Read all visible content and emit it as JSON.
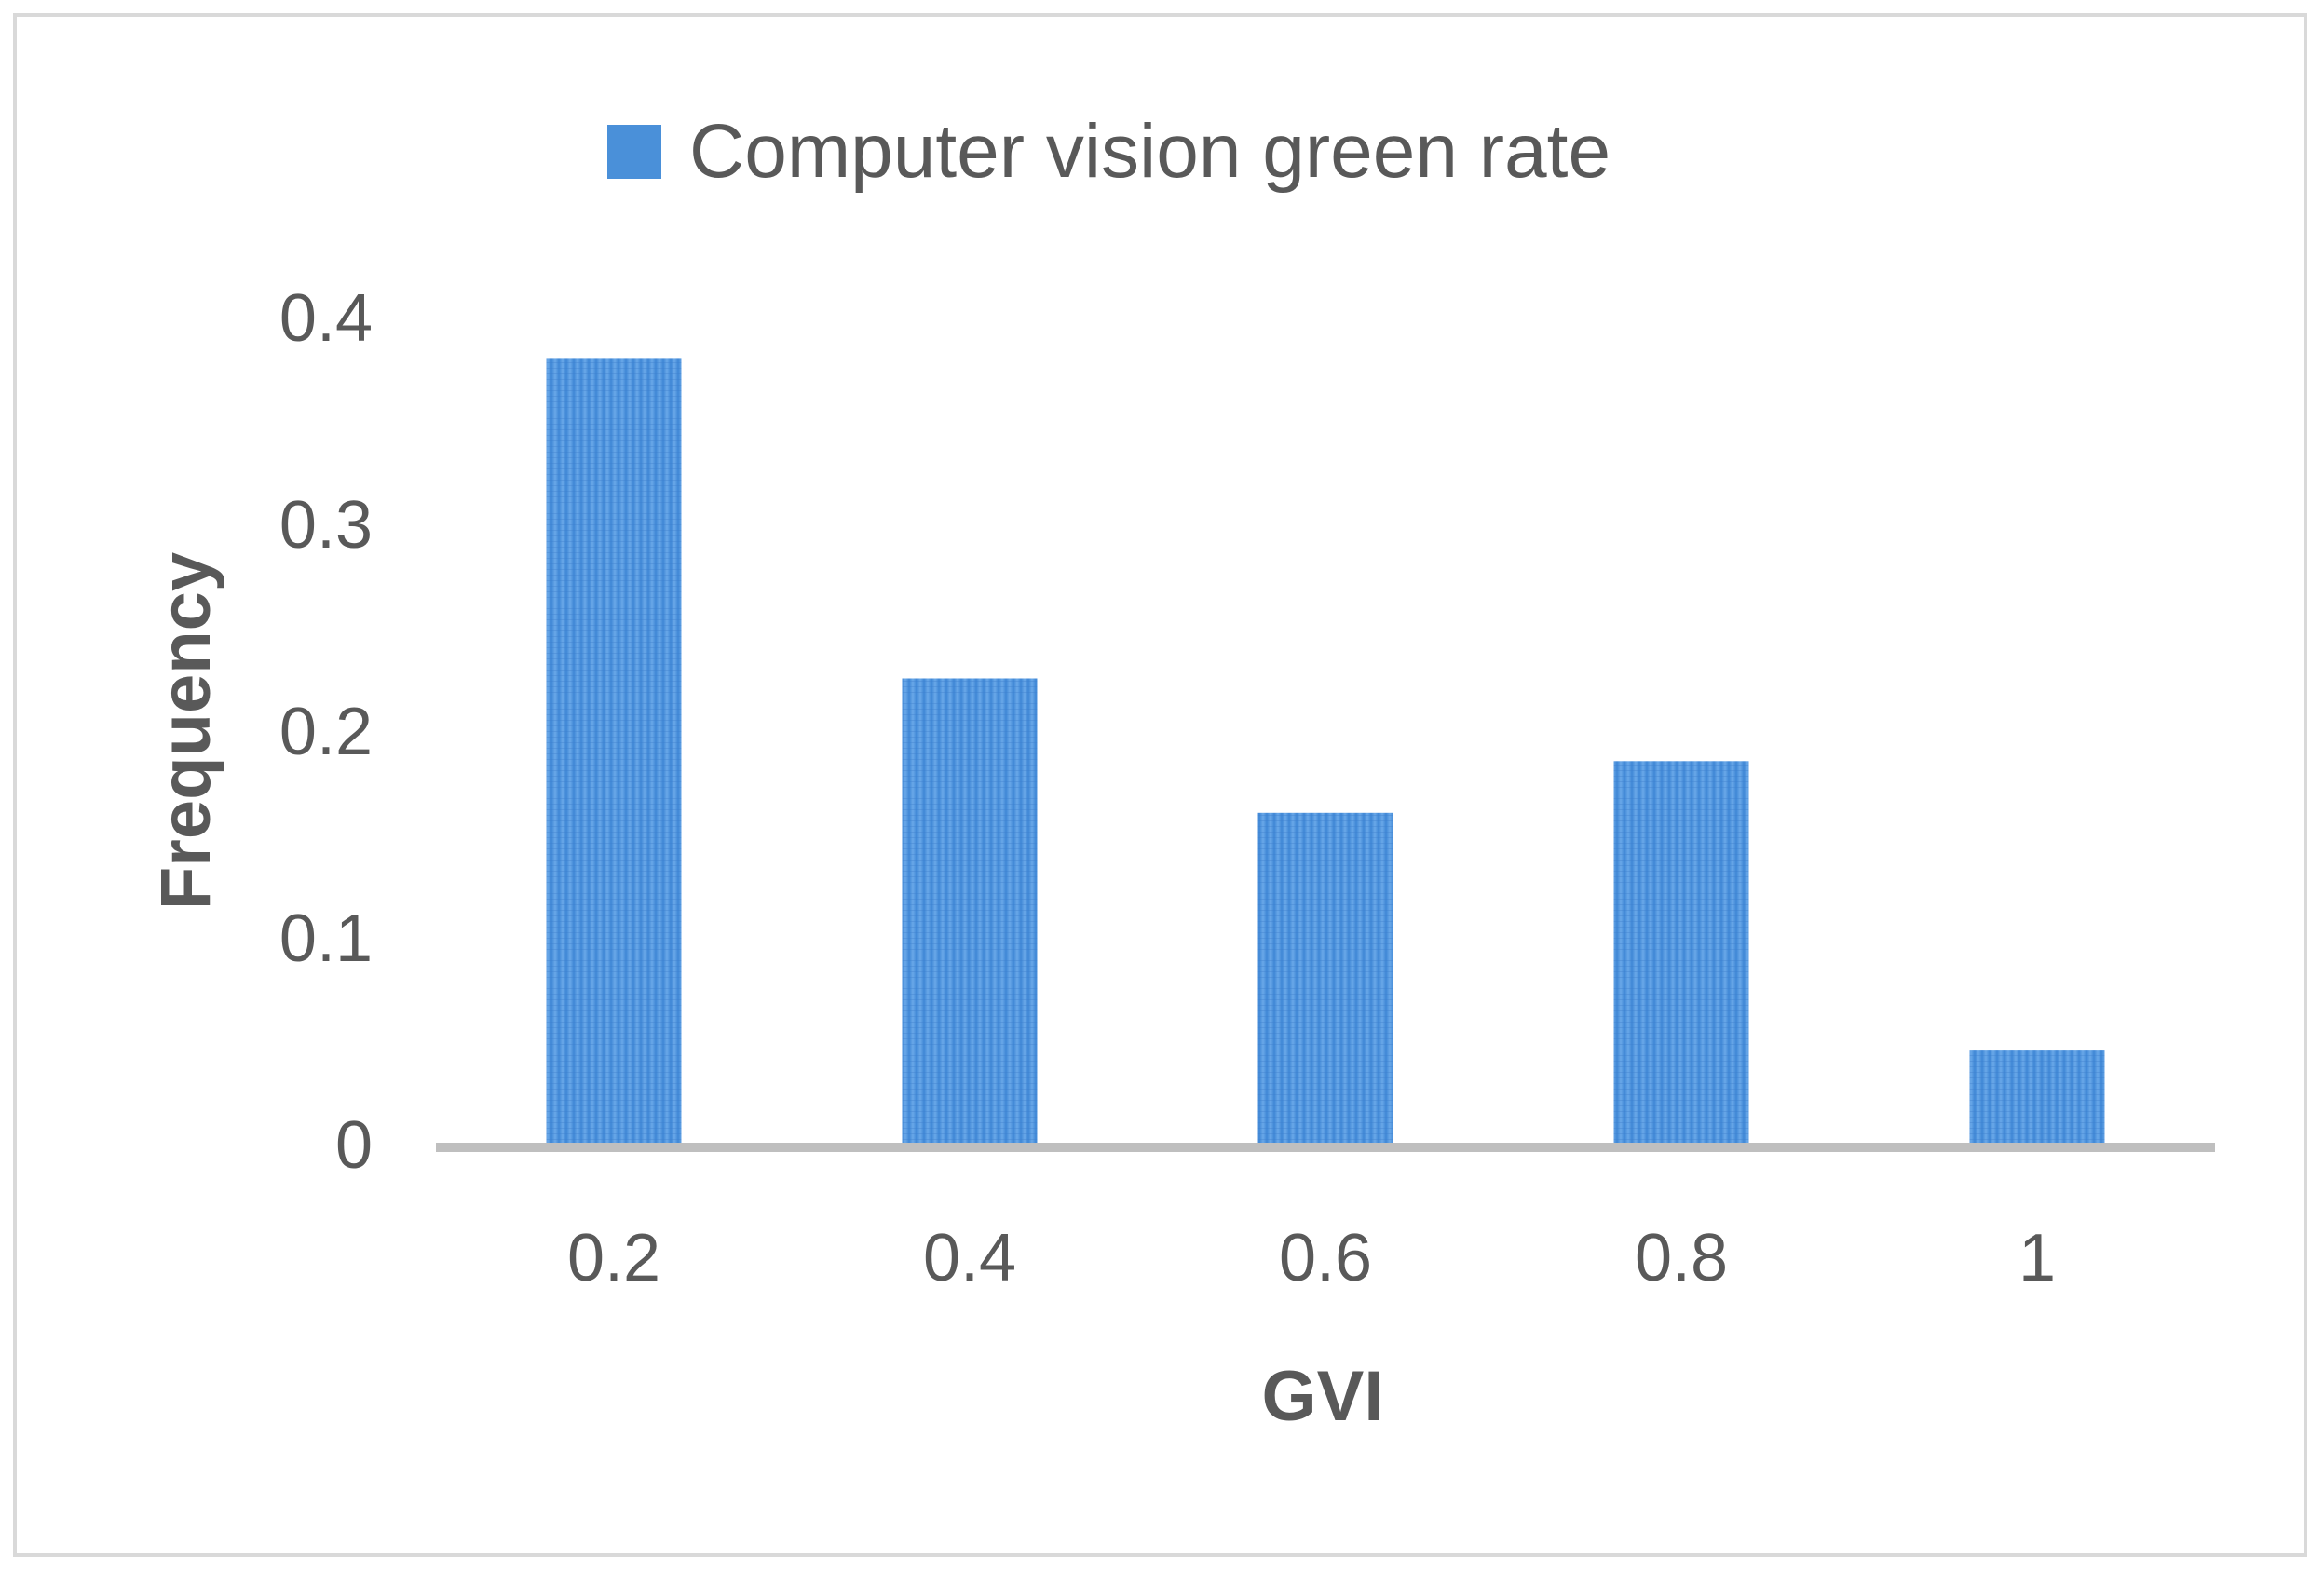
{
  "chart_data": {
    "type": "bar",
    "categories": [
      "0.2",
      "0.4",
      "0.6",
      "0.8",
      "1"
    ],
    "series": [
      {
        "name": "Computer vision green rate",
        "values": [
          0.38,
          0.225,
          0.16,
          0.185,
          0.045
        ],
        "color": "#4a90d9"
      }
    ],
    "title": "",
    "xlabel": "GVI",
    "ylabel": "Frequency",
    "ylim": [
      0,
      0.4
    ],
    "yticks": [
      "0",
      "0.1",
      "0.2",
      "0.3",
      "0.4"
    ],
    "grid": false,
    "legend_position": "top-center"
  }
}
